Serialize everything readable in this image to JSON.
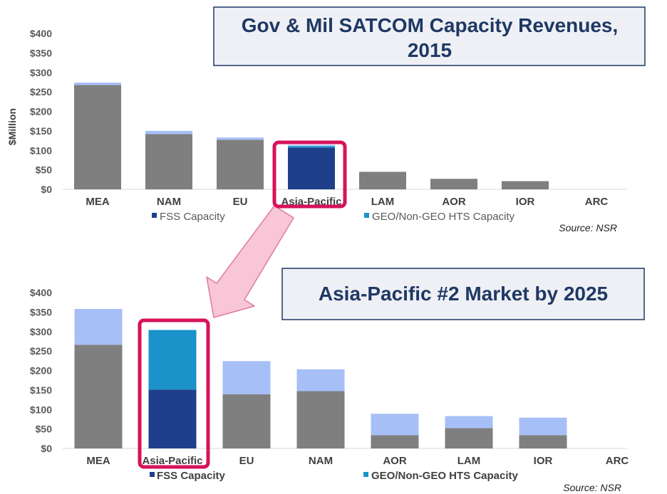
{
  "chart_data": [
    {
      "type": "bar",
      "stacked": true,
      "title": "Gov & Mil SATCOM Capacity Revenues, 2015",
      "ylabel": "$Million",
      "ylim": [
        0,
        400
      ],
      "yticks": [
        "$0",
        "$50",
        "$100",
        "$150",
        "$200",
        "$250",
        "$300",
        "$350",
        "$400"
      ],
      "ytick_values": [
        0,
        50,
        100,
        150,
        200,
        250,
        300,
        350,
        400
      ],
      "categories": [
        "MEA",
        "NAM",
        "EU",
        "Asia-Pacific",
        "LAM",
        "AOR",
        "IOR",
        "ARC"
      ],
      "highlight_category": "Asia-Pacific",
      "series": [
        {
          "name": "FSS Capacity",
          "values": [
            0,
            0,
            0,
            107,
            0,
            0,
            0,
            0
          ],
          "color": "#1f3f8a"
        },
        {
          "name": "GEO/Non-GEO HTS Capacity",
          "values": [
            0,
            0,
            0,
            4,
            0,
            0,
            0,
            0
          ],
          "color": "#1b92c9"
        },
        {
          "values": [
            268,
            142,
            127,
            0,
            45,
            27,
            21,
            0
          ],
          "color": "#7f7f7f"
        },
        {
          "values": [
            6,
            8,
            6,
            3,
            0,
            0,
            0,
            0
          ],
          "color": "#a6bff7"
        }
      ],
      "legend": [
        "FSS Capacity",
        "GEO/Non-GEO HTS Capacity"
      ],
      "legend_position": "bottom",
      "source": "Source: NSR"
    },
    {
      "type": "bar",
      "stacked": true,
      "title": "Asia-Pacific #2 Market by 2025",
      "ylim": [
        0,
        400
      ],
      "yticks": [
        "$0",
        "$50",
        "$100",
        "$150",
        "$200",
        "$250",
        "$300",
        "$350",
        "$400"
      ],
      "ytick_values": [
        0,
        50,
        100,
        150,
        200,
        250,
        300,
        350,
        400
      ],
      "categories": [
        "MEA",
        "Asia-Pacific",
        "EU",
        "NAM",
        "AOR",
        "LAM",
        "IOR",
        "ARC"
      ],
      "highlight_category": "Asia-Pacific",
      "series": [
        {
          "name": "FSS Capacity",
          "values": [
            0,
            151,
            0,
            0,
            0,
            0,
            0,
            0
          ],
          "color": "#1f3f8a"
        },
        {
          "name": "GEO/Non-GEO HTS Capacity",
          "values": [
            0,
            153,
            0,
            0,
            0,
            0,
            0,
            0
          ],
          "color": "#1b92c9"
        },
        {
          "values": [
            266,
            0,
            139,
            147,
            34,
            52,
            34,
            0
          ],
          "color": "#7f7f7f"
        },
        {
          "values": [
            92,
            0,
            85,
            56,
            55,
            31,
            45,
            0
          ],
          "color": "#a6bff7"
        }
      ],
      "legend": [
        "FSS Capacity",
        "GEO/Non-GEO HTS Capacity"
      ],
      "legend_position": "bottom",
      "source": "Source: NSR"
    }
  ],
  "colors": {
    "title_text": "#1f3864",
    "highlight_box": "#d6125a",
    "arrow_fill": "#f8c6d6",
    "arrow_stroke": "#e07aa0"
  }
}
